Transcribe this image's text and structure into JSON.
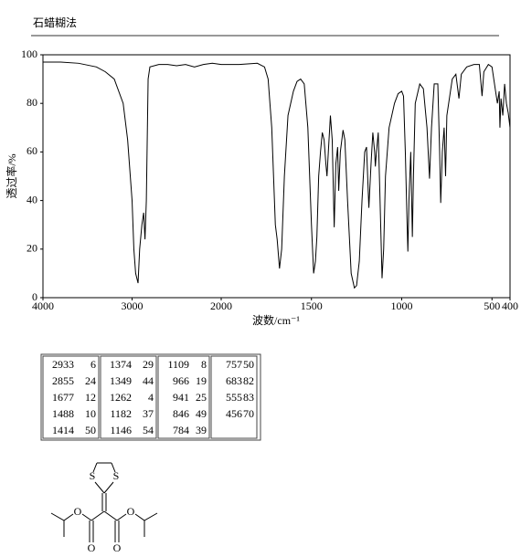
{
  "chart_data": {
    "type": "line",
    "title": "石蜡糊法",
    "xlabel": "波数/cm⁻¹",
    "ylabel": "透过率/%",
    "x": [
      4000,
      3800,
      3600,
      3400,
      3300,
      3200,
      3100,
      3050,
      3000,
      2980,
      2960,
      2933,
      2915,
      2890,
      2870,
      2855,
      2840,
      2820,
      2800,
      2700,
      2600,
      2500,
      2400,
      2300,
      2200,
      2100,
      2000,
      1900,
      1800,
      1760,
      1740,
      1720,
      1700,
      1690,
      1677,
      1665,
      1650,
      1630,
      1600,
      1580,
      1560,
      1540,
      1520,
      1500,
      1488,
      1478,
      1470,
      1460,
      1450,
      1440,
      1430,
      1420,
      1414,
      1405,
      1395,
      1385,
      1374,
      1365,
      1355,
      1349,
      1340,
      1325,
      1315,
      1300,
      1280,
      1262,
      1250,
      1235,
      1220,
      1205,
      1195,
      1182,
      1170,
      1160,
      1150,
      1146,
      1140,
      1130,
      1120,
      1109,
      1100,
      1090,
      1070,
      1040,
      1020,
      1000,
      990,
      980,
      970,
      966,
      960,
      950,
      941,
      935,
      925,
      900,
      880,
      860,
      846,
      835,
      820,
      800,
      790,
      784,
      775,
      765,
      757,
      750,
      720,
      700,
      683,
      670,
      640,
      600,
      570,
      555,
      545,
      520,
      500,
      480,
      470,
      460,
      456,
      450,
      440,
      430,
      420,
      410,
      400
    ],
    "values": [
      97,
      97,
      96.5,
      95,
      93,
      90,
      80,
      65,
      40,
      20,
      10,
      6,
      20,
      30,
      35,
      24,
      40,
      90,
      95,
      96,
      96,
      95.5,
      96,
      95,
      96,
      96.5,
      96,
      96,
      96.5,
      95,
      90,
      70,
      30,
      24,
      12,
      20,
      50,
      75,
      85,
      89,
      90,
      88,
      70,
      30,
      10,
      15,
      25,
      50,
      60,
      68,
      65,
      55,
      50,
      62,
      75,
      65,
      29,
      55,
      62,
      44,
      60,
      69,
      65,
      40,
      10,
      4,
      5,
      15,
      40,
      60,
      62,
      37,
      55,
      68,
      60,
      54,
      60,
      68,
      40,
      8,
      20,
      50,
      70,
      80,
      84,
      85,
      83,
      60,
      30,
      19,
      40,
      60,
      25,
      50,
      80,
      88,
      86,
      70,
      49,
      70,
      88,
      88,
      60,
      39,
      60,
      70,
      50,
      75,
      90,
      92,
      82,
      92,
      95,
      96,
      96,
      83,
      93,
      96,
      95,
      85,
      80,
      85,
      70,
      82,
      75,
      88,
      80,
      76,
      70
    ],
    "color": "#000000",
    "xlim": [
      4000,
      400
    ],
    "x_half_scale_above": 2000,
    "xticks": [
      4000,
      3000,
      2000,
      1500,
      1000,
      500,
      400
    ],
    "ylim": [
      0,
      100
    ],
    "yticks": [
      0,
      20,
      40,
      60,
      80,
      100
    ],
    "grid": false
  },
  "peak_table": {
    "rows": [
      [
        2933,
        6
      ],
      [
        2855,
        24
      ],
      [
        1677,
        12
      ],
      [
        1488,
        10
      ],
      [
        1414,
        50
      ],
      [
        1374,
        29
      ],
      [
        1349,
        44
      ],
      [
        1262,
        4
      ],
      [
        1182,
        37
      ],
      [
        1146,
        54
      ],
      [
        1109,
        8
      ],
      [
        966,
        19
      ],
      [
        941,
        25
      ],
      [
        846,
        49
      ],
      [
        784,
        39
      ],
      [
        757,
        50
      ],
      [
        683,
        82
      ],
      [
        555,
        83
      ],
      [
        456,
        70
      ]
    ]
  },
  "structure": {
    "atoms": [
      "S",
      "S",
      "O",
      "O",
      "O",
      "O"
    ]
  }
}
